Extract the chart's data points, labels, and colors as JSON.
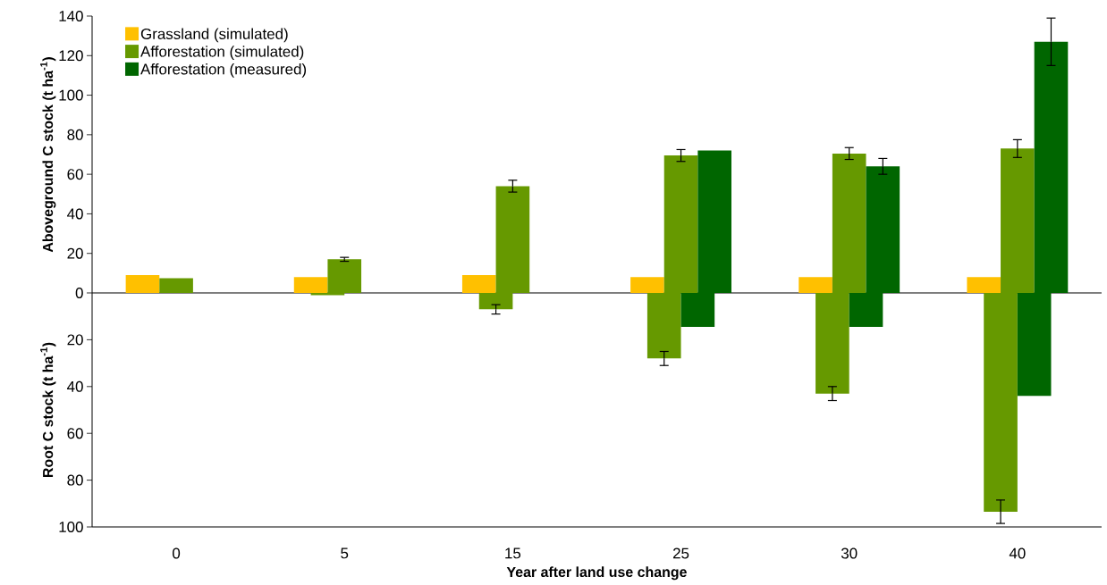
{
  "chart_data": [
    {
      "type": "bar",
      "ylabel": "Aboveground C stock (t ha$^{-1}$)",
      "categories": [
        "0",
        "5",
        "15",
        "25",
        "30",
        "40"
      ],
      "ylim": [
        0,
        140
      ],
      "yticks": [
        0,
        20,
        40,
        60,
        80,
        100,
        120,
        140
      ],
      "tick_labels": "y",
      "legend": "top left",
      "series": [
        {
          "name": "Grassland (simulated)",
          "color": "#ffc000",
          "values": [
            9,
            8,
            9,
            8,
            8,
            8
          ]
        },
        {
          "name": "Afforestation (simulated)",
          "color": "#669900",
          "values": [
            7.5,
            17,
            54,
            69.5,
            70.5,
            73
          ],
          "errors": [
            null,
            1,
            3,
            3,
            3,
            4.5
          ]
        },
        {
          "name": "Afforestation (measured)",
          "color": "#006600",
          "values": [
            null,
            null,
            null,
            72,
            64,
            127
          ],
          "errors": [
            null,
            null,
            null,
            null,
            4,
            12
          ]
        }
      ]
    },
    {
      "type": "bar",
      "ylabel": "Root C stock (t ha$^{-1}$)",
      "xlabel": "Year after land use change",
      "categories": [
        "0",
        "5",
        "15",
        "25",
        "30",
        "40"
      ],
      "ylim": [
        100,
        0
      ],
      "yticks": [
        20,
        40,
        60,
        80,
        100
      ],
      "series": [
        {
          "color": "#ffc000",
          "values": [
            null,
            null,
            null,
            null,
            null,
            null
          ]
        },
        {
          "color": "#669900",
          "values": [
            null,
            1,
            7,
            28,
            43,
            93.5
          ],
          "errors": [
            null,
            null,
            2,
            3,
            3,
            5
          ]
        },
        {
          "color": "#006600",
          "values": [
            null,
            null,
            null,
            14.5,
            14.5,
            44
          ]
        }
      ]
    }
  ]
}
